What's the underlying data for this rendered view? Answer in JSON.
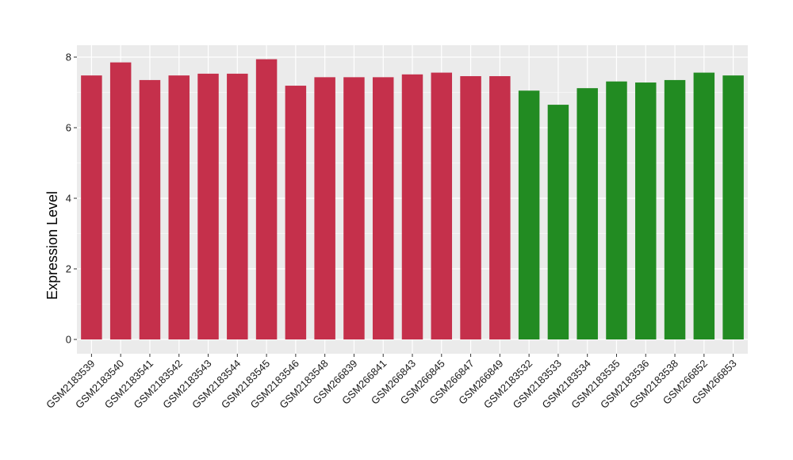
{
  "chart_data": {
    "type": "bar",
    "title": "",
    "xlabel": "",
    "ylabel": "Expression Level",
    "ylim": [
      0,
      8.3
    ],
    "yticks": [
      0,
      2,
      4,
      6,
      8
    ],
    "grid": true,
    "legend": "none",
    "colors": {
      "group_a": "#C5304B",
      "group_b": "#228B22",
      "panel": "#EBEBEB",
      "gridline": "#FFFFFF"
    },
    "categories": [
      "GSM2183539",
      "GSM2183540",
      "GSM2183541",
      "GSM2183542",
      "GSM2183543",
      "GSM2183544",
      "GSM2183545",
      "GSM2183546",
      "GSM2183548",
      "GSM266839",
      "GSM266841",
      "GSM266843",
      "GSM266845",
      "GSM266847",
      "GSM266849",
      "GSM2183532",
      "GSM2183533",
      "GSM2183534",
      "GSM2183535",
      "GSM2183536",
      "GSM2183538",
      "GSM266852",
      "GSM266853"
    ],
    "values": [
      7.48,
      7.85,
      7.35,
      7.48,
      7.53,
      7.53,
      7.94,
      7.19,
      7.43,
      7.43,
      7.43,
      7.51,
      7.56,
      7.46,
      7.46,
      7.05,
      6.65,
      7.12,
      7.31,
      7.28,
      7.35,
      7.56,
      7.48
    ],
    "groups": [
      "a",
      "a",
      "a",
      "a",
      "a",
      "a",
      "a",
      "a",
      "a",
      "a",
      "a",
      "a",
      "a",
      "a",
      "a",
      "b",
      "b",
      "b",
      "b",
      "b",
      "b",
      "b",
      "b"
    ]
  }
}
